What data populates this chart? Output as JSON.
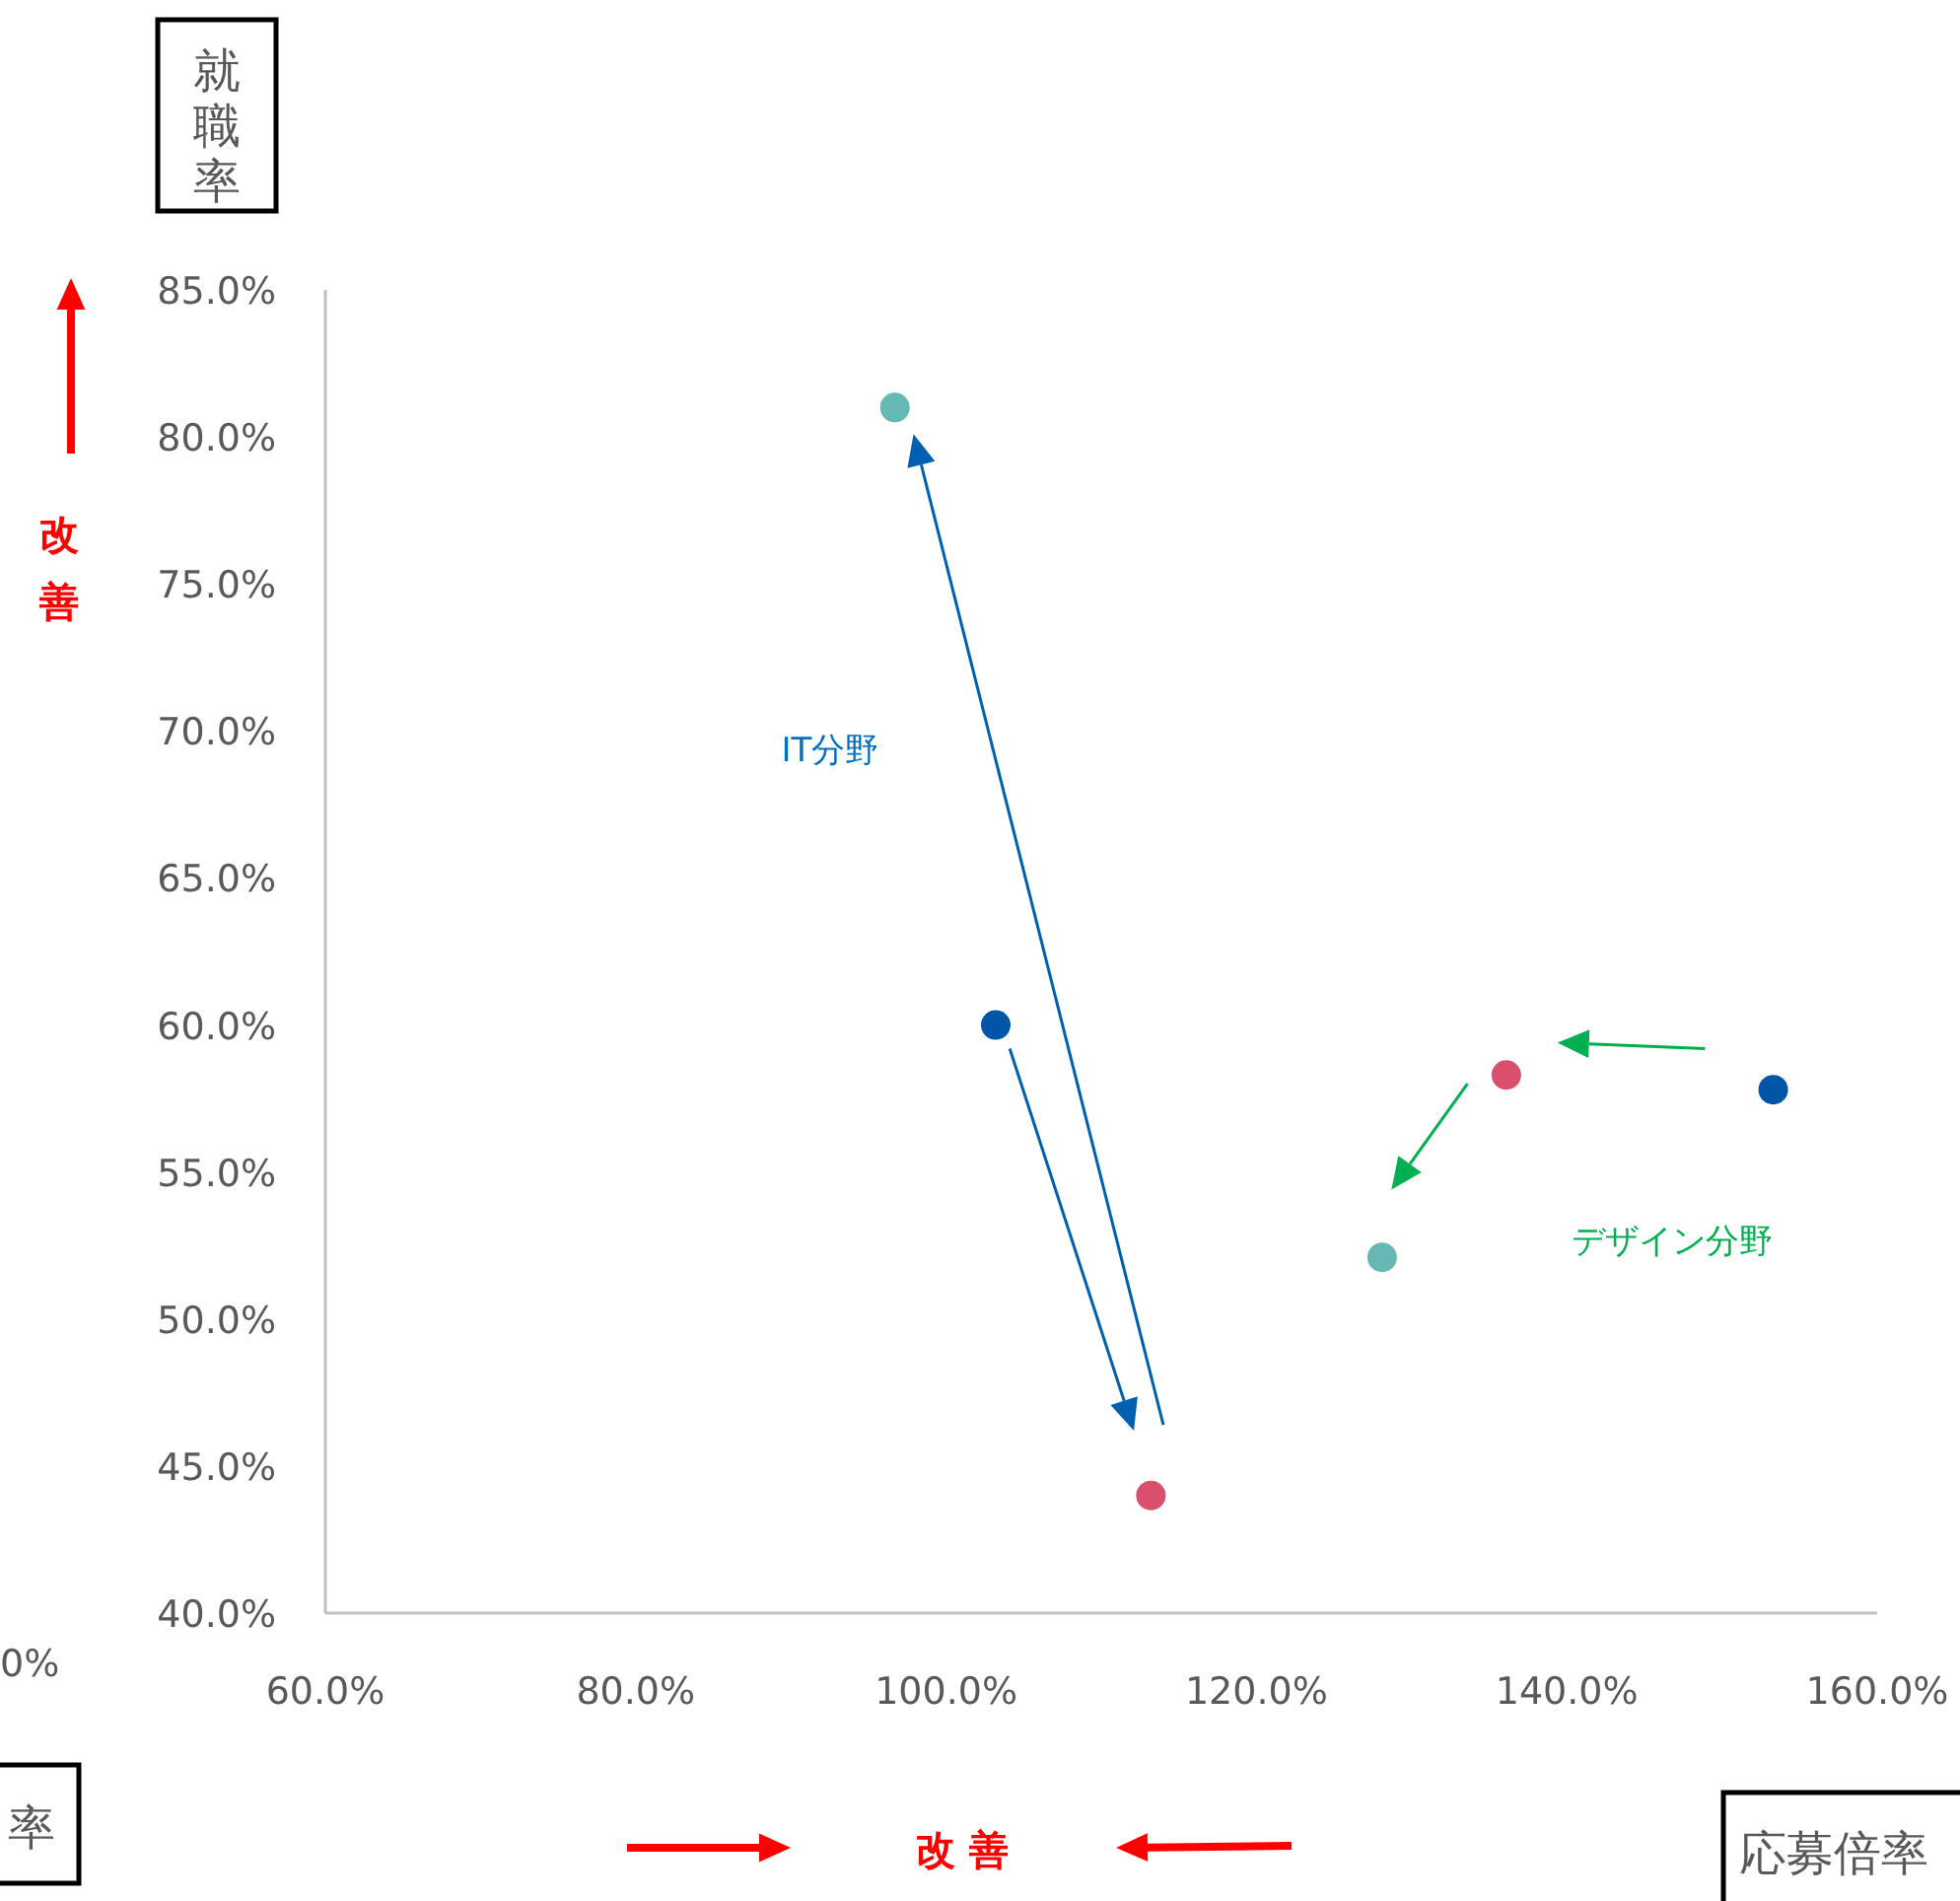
{
  "chart_data": {
    "type": "scatter",
    "xlabel": "応募倍率",
    "ylabel": "就職率",
    "series": [
      {
        "color": "#0055a6",
        "x": [
          103.2,
          153.3
        ],
        "values": [
          60.0,
          57.8
        ]
      },
      {
        "color": "#d9506f",
        "x": [
          113.2,
          136.1
        ],
        "values": [
          44.0,
          58.3
        ]
      },
      {
        "color": "#66b8b4",
        "x": [
          96.7,
          128.1
        ],
        "values": [
          81.0,
          52.1
        ]
      }
    ],
    "xlim": [
      60,
      160
    ],
    "ylim": [
      40,
      85
    ],
    "xticks": [
      {
        "value": 60,
        "label": "60.0%"
      },
      {
        "value": 80,
        "label": "80.0%"
      },
      {
        "value": 100,
        "label": "100.0%"
      },
      {
        "value": 120,
        "label": "120.0%"
      },
      {
        "value": 140,
        "label": "140.0%"
      },
      {
        "value": 160,
        "label": "160.0%"
      }
    ],
    "yticks": [
      {
        "value": 40,
        "label": "40.0%"
      },
      {
        "value": 45,
        "label": "45.0%"
      },
      {
        "value": 50,
        "label": "50.0%"
      },
      {
        "value": 55,
        "label": "55.0%"
      },
      {
        "value": 60,
        "label": "60.0%"
      },
      {
        "value": 65,
        "label": "65.0%"
      },
      {
        "value": 70,
        "label": "70.0%"
      },
      {
        "value": 75,
        "label": "75.0%"
      },
      {
        "value": 80,
        "label": "80.0%"
      },
      {
        "value": 85,
        "label": "85.0%"
      }
    ],
    "marker": "circle",
    "grid": false,
    "annotations": [
      "IT分野",
      "デザイン分野",
      "改善",
      "改 善",
      "0%",
      "率"
    ]
  }
}
